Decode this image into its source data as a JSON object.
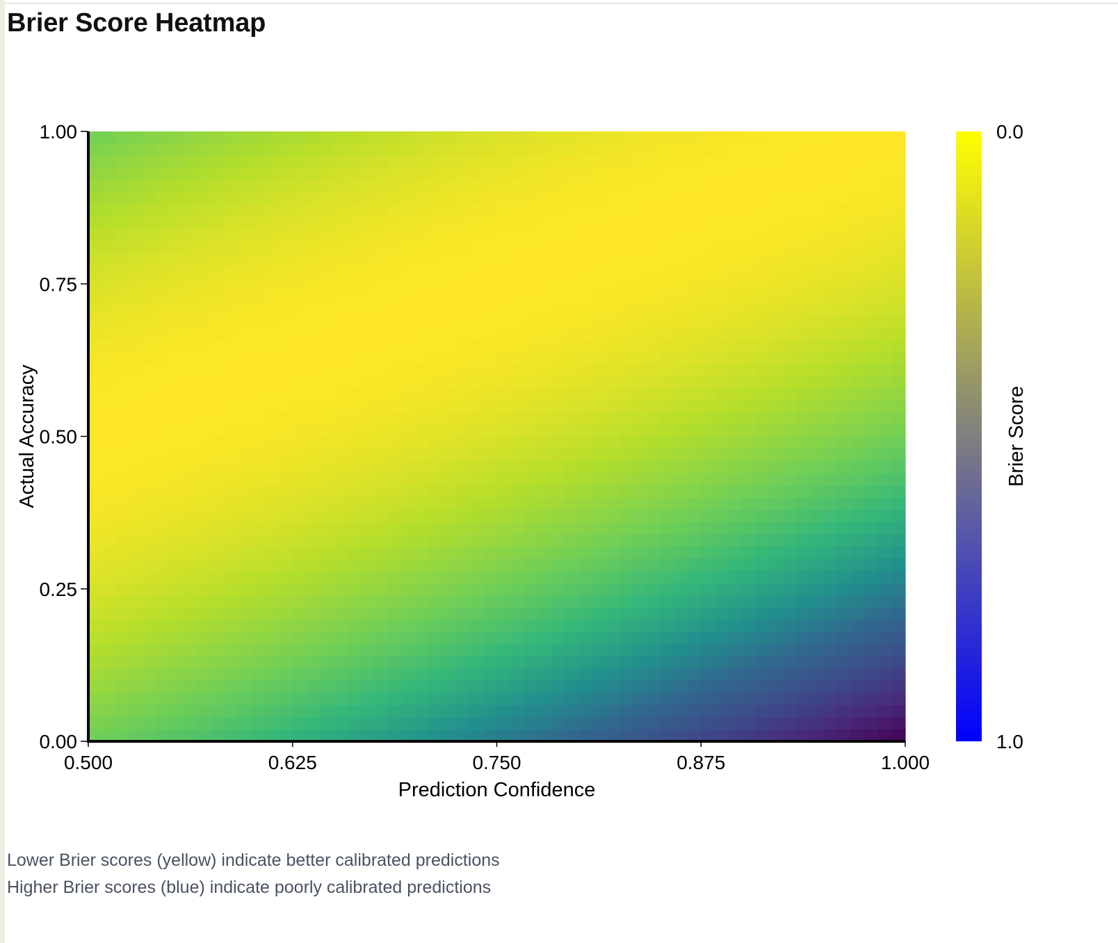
{
  "page": {
    "title": "Brier Score Heatmap"
  },
  "notes": {
    "line1": "Lower Brier scores (yellow) indicate better calibrated predictions",
    "line2": "Higher Brier scores (blue) indicate poorly calibrated predictions"
  },
  "colors": {
    "background": "#ffffff",
    "title": "#111111",
    "note_text": "#4a5262",
    "heatmap_low": "#fde725",
    "heatmap_mid": "#21908d",
    "heatmap_high": "#440154",
    "colorbar_low": "#ffff00",
    "colorbar_high": "#0000ff"
  },
  "chart_data": {
    "type": "heatmap",
    "title": "",
    "xlabel": "Prediction Confidence",
    "ylabel": "Actual Accuracy",
    "xlim": [
      0.5,
      1.0
    ],
    "ylim": [
      0.0,
      1.0
    ],
    "x_ticks": [
      "0.500",
      "0.625",
      "0.750",
      "0.875",
      "1.000"
    ],
    "y_ticks": [
      "0.00",
      "0.25",
      "0.50",
      "0.75",
      "1.00"
    ],
    "x_tick_values": [
      0.5,
      0.625,
      0.75,
      0.875,
      1.0
    ],
    "y_tick_values": [
      0.0,
      0.25,
      0.5,
      0.75,
      1.0
    ],
    "z_formula": "brier = (prediction_confidence - actual_accuracy)^2",
    "colorscale": "viridis",
    "colorbar": {
      "label": "Brier Score",
      "range": [
        0.0,
        1.0
      ],
      "tick_labels": [
        "0.0",
        "1.0"
      ]
    },
    "grid": false
  }
}
